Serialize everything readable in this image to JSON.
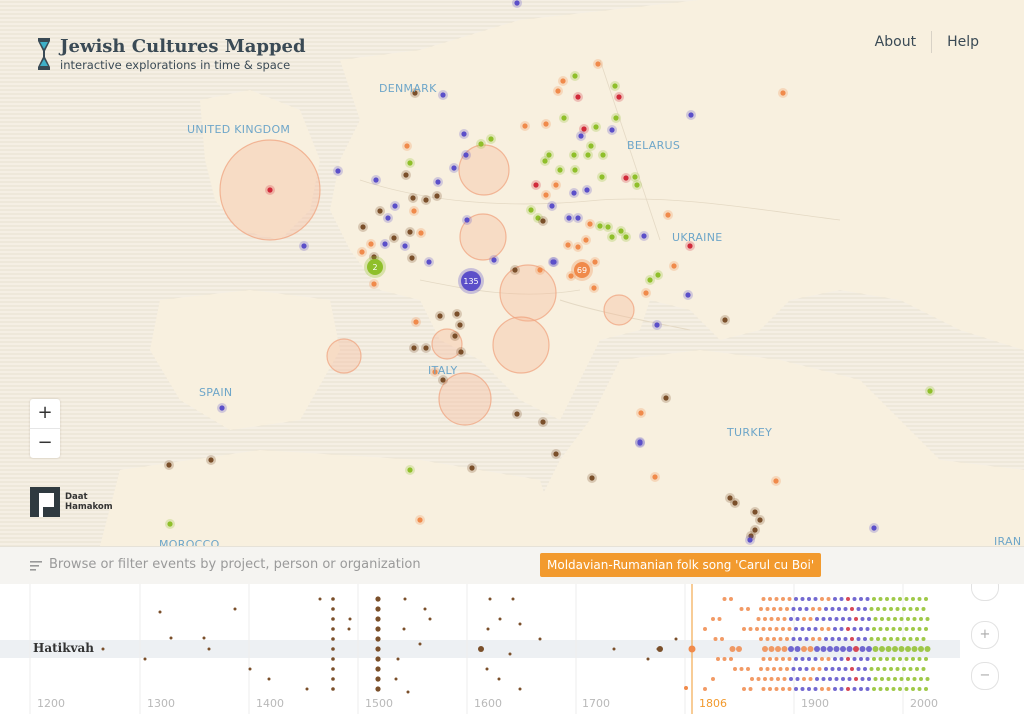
{
  "header": {
    "title": "Jewish Cultures Mapped",
    "subtitle": "interactive explorations in time & space",
    "nav": [
      {
        "label": "About"
      },
      {
        "label": "Help"
      }
    ]
  },
  "map": {
    "countries": [
      "DENMARK",
      "UNITED KINGDOM",
      "BELARUS",
      "UKRAINE",
      "SPAIN",
      "ITALY",
      "TURKEY",
      "MOROCCO",
      "IRAN"
    ],
    "cluster_counts": [
      "2",
      "135",
      "69"
    ],
    "zoom_in": "+",
    "zoom_out": "−",
    "partner_logo": {
      "line1": "Daat",
      "line2": "Hamakom"
    }
  },
  "filter": {
    "placeholder": "Browse or filter events by project, person or organization",
    "tooltip": "Moldavian-Rumanian folk song 'Carul cu Boi'"
  },
  "timeline": {
    "selected_row": "Hatikvah",
    "ticks": [
      "1200",
      "1300",
      "1400",
      "1500",
      "1600",
      "1700",
      "1806",
      "1900",
      "2000"
    ],
    "current_year": "1806",
    "controls": {
      "collapse": "⌃",
      "zoom_in": "+",
      "zoom_out": "−"
    }
  },
  "colors": {
    "accent": "#f29a2e",
    "purple": "#5b4fc9",
    "green": "#8fbf2a",
    "brown": "#7a4f2a",
    "orange": "#f08a4b",
    "red": "#d12a3a",
    "country_label": "#6ea6c9"
  }
}
